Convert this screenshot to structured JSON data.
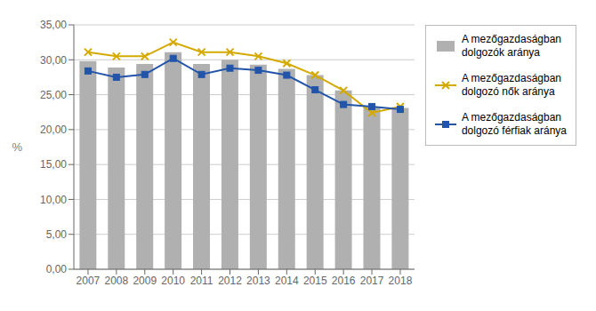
{
  "chart_data": {
    "type": "bar",
    "ylabel": "%",
    "categories": [
      "2007",
      "2008",
      "2009",
      "2010",
      "2011",
      "2012",
      "2013",
      "2014",
      "2015",
      "2016",
      "2017",
      "2018"
    ],
    "series": [
      {
        "name": "A mezőgazdaságban\ndolgozók aránya",
        "type": "bar",
        "color": "#b0b0b0",
        "values": [
          29.8,
          28.9,
          29.4,
          31.1,
          29.4,
          30.0,
          29.3,
          28.7,
          27.8,
          25.6,
          23.3,
          23.1
        ]
      },
      {
        "name": "A mezőgazdaságban\ndolgozó nők aránya",
        "type": "line",
        "marker": "x",
        "color": "#d4aa00",
        "values": [
          31.1,
          30.5,
          30.5,
          32.5,
          31.1,
          31.1,
          30.5,
          29.5,
          27.8,
          25.6,
          22.4,
          23.3
        ]
      },
      {
        "name": "A mezőgazdaságban\ndolgozó férfiak aránya",
        "type": "line",
        "marker": "square",
        "color": "#2255aa",
        "values": [
          28.4,
          27.5,
          27.9,
          30.2,
          27.9,
          28.8,
          28.5,
          27.8,
          25.7,
          23.6,
          23.3,
          22.9
        ]
      }
    ],
    "ylim": [
      0,
      35
    ],
    "yticks": [
      {
        "value": 0,
        "label": "0,00"
      },
      {
        "value": 5,
        "label": "5,00"
      },
      {
        "value": 10,
        "label": "10,00"
      },
      {
        "value": 15,
        "label": "15,00"
      },
      {
        "value": 20,
        "label": "20,00"
      },
      {
        "value": 25,
        "label": "25,00"
      },
      {
        "value": 30,
        "label": "30,00"
      },
      {
        "value": 35,
        "label": "35,00"
      }
    ],
    "grid": true,
    "legend": "right"
  }
}
